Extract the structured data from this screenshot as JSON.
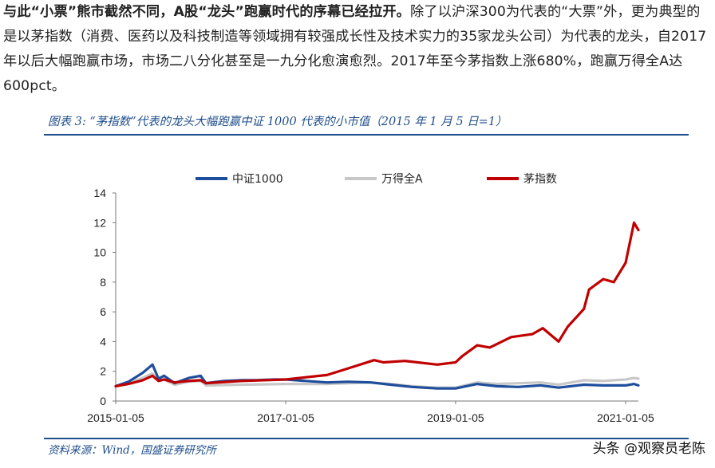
{
  "paragraph": {
    "lead": "与此“小票”熊市截然不同，A股“龙头”跑赢时代的序幕已经拉开。",
    "body": "除了以沪深300为代表的“大票”外，更为典型的是以茅指数（消费、医药以及科技制造等领域拥有较强成长性及技术实力的35家龙头公司）为代表的龙头，自2017年以后大幅跑赢市场，市场二八分化甚至是一九分化愈演愈烈。2017年至今茅指数上涨680%，跑赢万得全A达600pct。"
  },
  "figure": {
    "title": "图表 3:  “茅指数”代表的龙头大幅跑赢中证 1000 代表的小市值（2015 年 1 月 5 日=1）",
    "source": "资料来源：Wind，国盛证券研究所"
  },
  "watermark": "头条 @观察员老陈",
  "colors": {
    "accent": "#1f4e8c",
    "zz1000": "#1f4e9c",
    "wind_all_a": "#c8c8c8",
    "mao": "#c00000"
  },
  "chart_data": {
    "type": "line",
    "title": "",
    "xlabel": "",
    "ylabel": "",
    "ylim": [
      0,
      14
    ],
    "yticks": [
      "0",
      "2",
      "4",
      "6",
      "8",
      "10",
      "12",
      "14"
    ],
    "xticks": [
      "2015-01-05",
      "2017-01-05",
      "2019-01-05",
      "2021-01-05"
    ],
    "xlim": [
      "2015-01-05",
      "2021-03-01"
    ],
    "legend_position": "top",
    "grid": false,
    "series": [
      {
        "name": "中证1000",
        "color": "#1f4e9c",
        "x": [
          "2015-01-05",
          "2015-03-01",
          "2015-05-01",
          "2015-06-12",
          "2015-07-08",
          "2015-08-01",
          "2015-09-15",
          "2015-11-15",
          "2016-01-05",
          "2016-01-28",
          "2016-04-15",
          "2016-07-01",
          "2016-09-01",
          "2016-11-15",
          "2017-01-05",
          "2017-04-01",
          "2017-07-01",
          "2017-10-01",
          "2018-01-05",
          "2018-04-01",
          "2018-07-01",
          "2018-10-18",
          "2019-01-05",
          "2019-04-08",
          "2019-07-01",
          "2019-10-01",
          "2020-01-05",
          "2020-03-23",
          "2020-07-10",
          "2020-10-01",
          "2021-01-05",
          "2021-02-10",
          "2021-03-01"
        ],
        "values": [
          1.0,
          1.3,
          1.9,
          2.45,
          1.5,
          1.7,
          1.2,
          1.55,
          1.7,
          1.2,
          1.35,
          1.4,
          1.4,
          1.45,
          1.45,
          1.35,
          1.25,
          1.3,
          1.25,
          1.1,
          0.95,
          0.85,
          0.85,
          1.15,
          1.0,
          0.95,
          1.05,
          0.9,
          1.1,
          1.05,
          1.05,
          1.15,
          1.05
        ]
      },
      {
        "name": "万得全A",
        "color": "#c8c8c8",
        "x": [
          "2015-01-05",
          "2015-03-01",
          "2015-05-01",
          "2015-06-12",
          "2015-07-08",
          "2015-08-01",
          "2015-09-15",
          "2015-11-15",
          "2016-01-05",
          "2016-01-28",
          "2016-07-01",
          "2017-01-05",
          "2017-07-01",
          "2018-01-05",
          "2018-04-01",
          "2018-07-01",
          "2018-10-18",
          "2019-01-05",
          "2019-04-08",
          "2019-07-01",
          "2020-01-05",
          "2020-03-23",
          "2020-07-10",
          "2020-10-01",
          "2021-01-05",
          "2021-02-10",
          "2021-03-01"
        ],
        "values": [
          1.0,
          1.2,
          1.55,
          1.85,
          1.35,
          1.45,
          1.1,
          1.3,
          1.35,
          1.05,
          1.1,
          1.15,
          1.15,
          1.25,
          1.15,
          1.0,
          0.9,
          0.9,
          1.25,
          1.15,
          1.25,
          1.1,
          1.4,
          1.35,
          1.45,
          1.55,
          1.5
        ]
      },
      {
        "name": "茅指数",
        "color": "#c00000",
        "x": [
          "2015-01-05",
          "2015-03-01",
          "2015-05-01",
          "2015-06-12",
          "2015-07-08",
          "2015-08-01",
          "2015-09-15",
          "2015-11-15",
          "2016-01-05",
          "2016-01-28",
          "2016-07-01",
          "2017-01-05",
          "2017-04-01",
          "2017-07-01",
          "2017-10-01",
          "2018-01-20",
          "2018-03-01",
          "2018-06-01",
          "2018-10-18",
          "2019-01-05",
          "2019-02-01",
          "2019-04-08",
          "2019-06-01",
          "2019-09-01",
          "2019-12-01",
          "2020-01-15",
          "2020-03-23",
          "2020-05-01",
          "2020-07-10",
          "2020-08-01",
          "2020-10-01",
          "2020-11-15",
          "2021-01-05",
          "2021-02-10",
          "2021-03-01"
        ],
        "values": [
          1.0,
          1.15,
          1.4,
          1.7,
          1.35,
          1.45,
          1.25,
          1.35,
          1.4,
          1.2,
          1.35,
          1.45,
          1.6,
          1.75,
          2.2,
          2.75,
          2.6,
          2.7,
          2.45,
          2.6,
          3.0,
          3.75,
          3.6,
          4.3,
          4.5,
          4.9,
          4.0,
          5.0,
          6.2,
          7.5,
          8.2,
          8.0,
          9.3,
          12.0,
          11.5
        ]
      }
    ]
  }
}
